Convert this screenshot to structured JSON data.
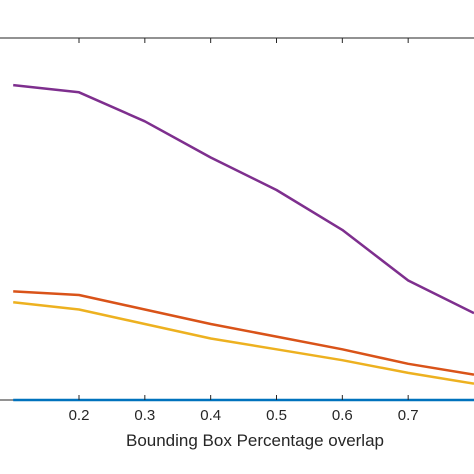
{
  "chart_data": {
    "type": "line",
    "xlabel": "Bounding Box Percentage overlap",
    "ylabel": "",
    "title": "",
    "xlim": [
      0.08,
      0.8
    ],
    "ylim": [
      0,
      1
    ],
    "grid": false,
    "x_ticks": [
      "0.2",
      "0.3",
      "0.4",
      "0.5",
      "0.6",
      "0.7"
    ],
    "x": [
      0.1,
      0.2,
      0.3,
      0.4,
      0.5,
      0.6,
      0.7,
      0.8
    ],
    "series": [
      {
        "color": "#7E2F8E",
        "values": [
          0.87,
          0.85,
          0.77,
          0.67,
          0.58,
          0.47,
          0.33,
          0.24
        ]
      },
      {
        "color": "#D95319",
        "values": [
          0.3,
          0.29,
          0.25,
          0.21,
          0.175,
          0.14,
          0.1,
          0.07
        ]
      },
      {
        "color": "#EDB120",
        "values": [
          0.27,
          0.25,
          0.21,
          0.17,
          0.14,
          0.11,
          0.075,
          0.045
        ]
      },
      {
        "color": "#0072BD",
        "values": [
          0.0,
          0.0,
          0.0,
          0.0,
          0.0,
          0.0,
          0.0,
          0.0
        ]
      }
    ]
  }
}
